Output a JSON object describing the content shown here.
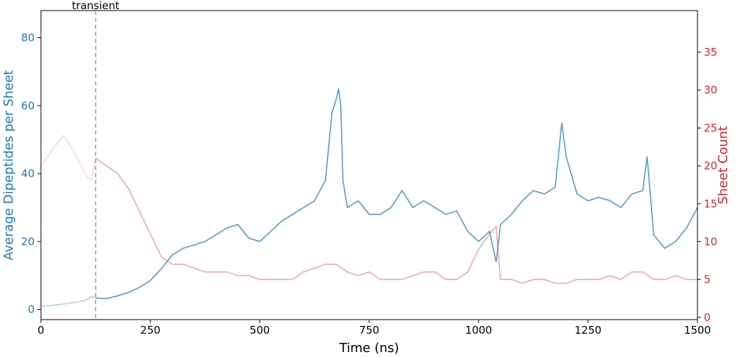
{
  "chart_data": {
    "type": "line",
    "title": "",
    "xlabel": "Time (ns)",
    "ylabel_left": "Average Dipeptides per Sheet",
    "ylabel_right": "Sheet Count",
    "xlim": [
      0,
      1500
    ],
    "ylim_left": [
      -3,
      88
    ],
    "ylim_right": [
      -0.3,
      40.5
    ],
    "xticks": [
      0,
      250,
      500,
      750,
      1000,
      1250,
      1500
    ],
    "yticks_left": [
      0,
      20,
      40,
      60,
      80
    ],
    "yticks_right": [
      0,
      5,
      10,
      15,
      20,
      25,
      30,
      35
    ],
    "grid": false,
    "legend": "none",
    "annotations": [
      {
        "text": "transient",
        "x": 125,
        "style": "dashed vertical line"
      }
    ],
    "colors": {
      "left_series": "#1f77b4",
      "right_series": "#d62728"
    },
    "series": [
      {
        "axis": "left",
        "color": "#1f77b4",
        "x": [
          0,
          25,
          50,
          75,
          100,
          115,
          125,
          150,
          175,
          200,
          225,
          250,
          275,
          300,
          325,
          350,
          375,
          400,
          425,
          450,
          475,
          500,
          525,
          550,
          575,
          600,
          625,
          650,
          665,
          675,
          680,
          685,
          690,
          700,
          725,
          750,
          775,
          800,
          825,
          850,
          875,
          900,
          925,
          950,
          975,
          1000,
          1025,
          1040,
          1050,
          1075,
          1100,
          1125,
          1150,
          1175,
          1190,
          1200,
          1225,
          1250,
          1275,
          1300,
          1325,
          1350,
          1375,
          1385,
          1400,
          1425,
          1450,
          1475,
          1500
        ],
        "y": [
          1,
          1.2,
          1.6,
          2,
          2.6,
          3.8,
          3.4,
          3.2,
          4,
          5,
          6.5,
          8.5,
          12,
          16,
          18,
          19,
          20,
          22,
          24,
          25,
          21,
          20,
          23,
          26,
          28,
          30,
          32,
          38,
          58,
          62,
          65,
          60,
          38,
          30,
          32,
          28,
          28,
          30,
          35,
          30,
          32,
          30,
          28,
          29,
          23,
          20,
          23,
          14,
          25,
          28,
          32,
          35,
          34,
          36,
          55,
          45,
          34,
          32,
          33,
          32,
          30,
          34,
          35,
          45,
          22,
          18,
          20,
          24,
          30
        ],
        "transient_until": 125
      },
      {
        "axis": "right",
        "color": "#d62728",
        "x": [
          0,
          25,
          50,
          75,
          100,
          115,
          125,
          150,
          175,
          200,
          225,
          250,
          275,
          300,
          325,
          350,
          375,
          400,
          425,
          450,
          475,
          500,
          525,
          550,
          575,
          600,
          625,
          650,
          675,
          700,
          725,
          750,
          775,
          800,
          825,
          850,
          875,
          900,
          925,
          950,
          975,
          1000,
          1025,
          1040,
          1050,
          1075,
          1100,
          1125,
          1150,
          1175,
          1200,
          1225,
          1250,
          1275,
          1300,
          1325,
          1350,
          1375,
          1400,
          1425,
          1450,
          1475,
          1500
        ],
        "y": [
          20,
          22,
          24,
          22,
          19,
          18,
          21,
          20,
          19,
          17,
          14,
          11,
          8,
          7,
          7,
          6.5,
          6,
          6,
          6,
          5.5,
          5.5,
          5,
          5,
          5,
          5,
          6,
          6.5,
          7,
          7,
          6,
          5.5,
          6,
          5,
          5,
          5,
          5.5,
          6,
          6,
          5,
          5,
          6,
          9,
          11,
          12,
          5,
          5,
          4.5,
          5,
          5,
          4.5,
          4.5,
          5,
          5,
          5,
          5.5,
          5,
          6,
          6,
          5,
          5,
          5.5,
          5,
          5
        ],
        "transient_until": 125
      }
    ]
  }
}
